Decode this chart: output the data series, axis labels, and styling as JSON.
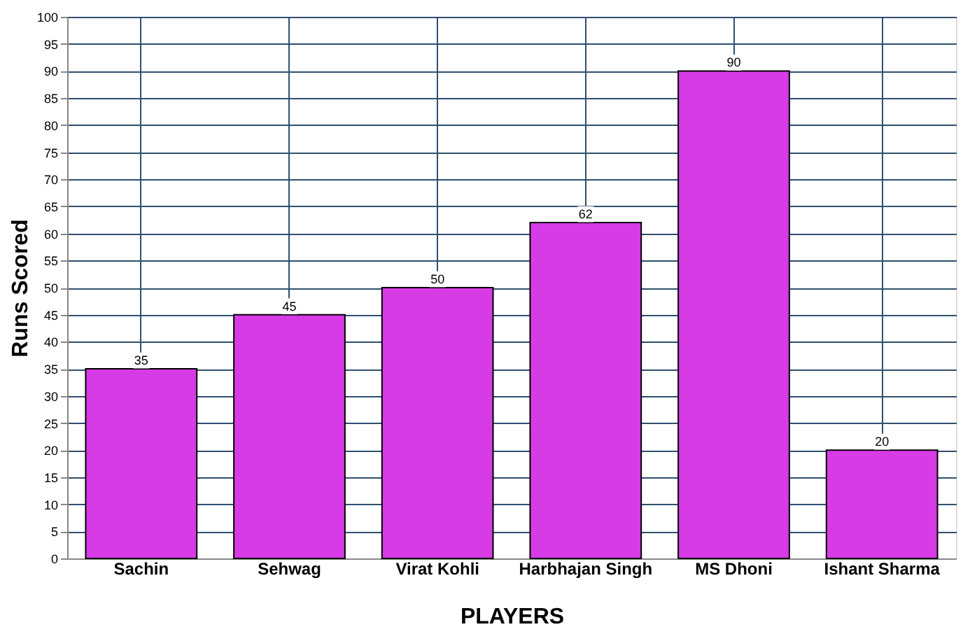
{
  "chart_data": {
    "type": "bar",
    "xlabel": "PLAYERS",
    "ylabel": "Runs Scored",
    "categories": [
      "Sachin",
      "Sehwag",
      "Virat Kohli",
      "Harbhajan Singh",
      "MS Dhoni",
      "Ishant Sharma"
    ],
    "values": [
      35,
      45,
      50,
      62,
      90,
      20
    ],
    "color": "#d63be6",
    "ylim": [
      0,
      100
    ],
    "yticks": [
      0,
      5,
      10,
      15,
      20,
      25,
      30,
      35,
      40,
      45,
      50,
      55,
      60,
      65,
      70,
      75,
      80,
      85,
      90,
      95,
      100
    ],
    "grid": true,
    "data_labels": true
  }
}
